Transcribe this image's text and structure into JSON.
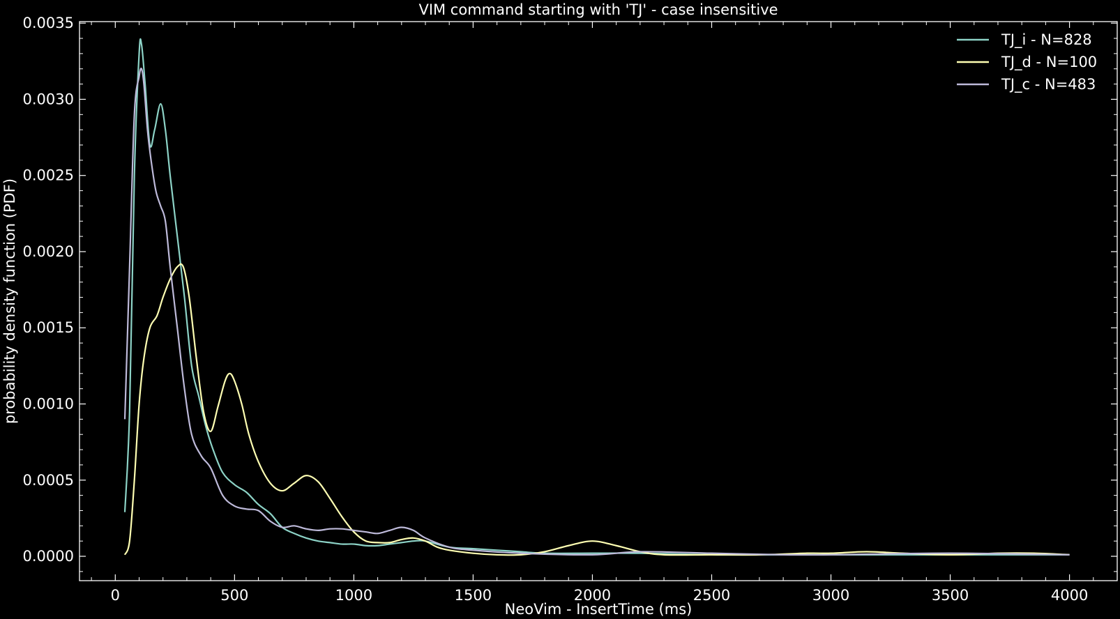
{
  "chart_data": {
    "type": "line",
    "title": "VIM command starting with 'TJ' - case insensitive",
    "xlabel": "NeoVim - InsertTime (ms)",
    "ylabel": "probability density function (PDF)",
    "xlim": [
      -150,
      4200
    ],
    "ylim": [
      -0.00016,
      0.00351
    ],
    "xticks": [
      0,
      500,
      1000,
      1500,
      2000,
      2500,
      3000,
      3500,
      4000
    ],
    "xtick_labels": [
      "0",
      "500",
      "1000",
      "1500",
      "2000",
      "2500",
      "3000",
      "3500",
      "4000"
    ],
    "yticks": [
      0,
      0.0005,
      0.001,
      0.0015,
      0.002,
      0.0025,
      0.003,
      0.0035
    ],
    "ytick_labels": [
      "0.0000",
      "0.0005",
      "0.0010",
      "0.0015",
      "0.0020",
      "0.0025",
      "0.0030",
      "0.0035"
    ],
    "grid": false,
    "legend_position": "top-right",
    "background": "#000000",
    "series": [
      {
        "name": "TJ_i - N=828",
        "color": "#8dd3c7",
        "x": [
          40,
          60,
          80,
          100,
          110,
          125,
          145,
          165,
          190,
          210,
          230,
          260,
          290,
          320,
          350,
          380,
          410,
          450,
          500,
          550,
          600,
          650,
          700,
          750,
          800,
          850,
          900,
          950,
          1000,
          1050,
          1100,
          1150,
          1200,
          1250,
          1300,
          1400,
          1500,
          1600,
          1700,
          1800,
          2000,
          2200,
          2500,
          2800,
          3000,
          3500,
          4000
        ],
        "y": [
          0.00029,
          0.00095,
          0.0025,
          0.0033,
          0.00336,
          0.0031,
          0.0027,
          0.0028,
          0.00297,
          0.0028,
          0.0025,
          0.0021,
          0.0017,
          0.00125,
          0.00105,
          0.00085,
          0.0007,
          0.00055,
          0.00047,
          0.00042,
          0.00034,
          0.00028,
          0.00019,
          0.00015,
          0.00012,
          0.0001,
          9e-05,
          8e-05,
          8e-05,
          7e-05,
          7e-05,
          8e-05,
          9e-05,
          0.0001,
          0.0001,
          6e-05,
          5e-05,
          4e-05,
          3e-05,
          2e-05,
          2e-05,
          2e-05,
          1e-05,
          1e-05,
          1e-05,
          1e-05,
          1e-05
        ]
      },
      {
        "name": "TJ_d - N=100",
        "color": "#ffffb3",
        "x": [
          40,
          60,
          80,
          100,
          120,
          145,
          175,
          200,
          230,
          260,
          285,
          310,
          340,
          370,
          400,
          430,
          460,
          480,
          500,
          530,
          560,
          600,
          650,
          700,
          750,
          800,
          850,
          900,
          950,
          1000,
          1050,
          1100,
          1150,
          1200,
          1250,
          1300,
          1350,
          1400,
          1500,
          1600,
          1700,
          1800,
          1900,
          2000,
          2100,
          2200,
          2300,
          2500,
          2700,
          2900,
          3000,
          3150,
          3300,
          3500,
          3700,
          3850,
          4000
        ],
        "y": [
          1e-05,
          0.0001,
          0.0005,
          0.001,
          0.0013,
          0.0015,
          0.00158,
          0.0017,
          0.00182,
          0.0019,
          0.0019,
          0.0017,
          0.0013,
          0.00095,
          0.00082,
          0.00098,
          0.00115,
          0.0012,
          0.00115,
          0.001,
          0.0008,
          0.00062,
          0.00048,
          0.00043,
          0.00048,
          0.00053,
          0.00049,
          0.00038,
          0.00026,
          0.00016,
          0.0001,
          9e-05,
          9e-05,
          0.00011,
          0.00012,
          0.0001,
          6e-05,
          4e-05,
          2e-05,
          1e-05,
          1e-05,
          3e-05,
          7e-05,
          0.0001,
          7e-05,
          3e-05,
          1e-05,
          1e-05,
          1e-05,
          2e-05,
          2e-05,
          3e-05,
          2e-05,
          1e-05,
          2e-05,
          2e-05,
          1e-05
        ]
      },
      {
        "name": "TJ_c - N=483",
        "color": "#bebada",
        "x": [
          40,
          60,
          80,
          100,
          110,
          120,
          135,
          150,
          170,
          190,
          210,
          230,
          260,
          290,
          320,
          360,
          400,
          450,
          500,
          550,
          600,
          650,
          700,
          750,
          800,
          850,
          900,
          950,
          1000,
          1050,
          1100,
          1150,
          1200,
          1250,
          1300,
          1400,
          1500,
          1700,
          2000,
          2200,
          2500,
          2800,
          3000,
          3500,
          4000
        ],
        "y": [
          0.0009,
          0.0019,
          0.0029,
          0.00315,
          0.0032,
          0.0031,
          0.0028,
          0.0026,
          0.0024,
          0.0023,
          0.0022,
          0.0019,
          0.0015,
          0.0011,
          0.0008,
          0.00066,
          0.00058,
          0.0004,
          0.00033,
          0.00031,
          0.0003,
          0.00023,
          0.00019,
          0.0002,
          0.00018,
          0.00017,
          0.00018,
          0.00018,
          0.00017,
          0.00016,
          0.00015,
          0.00017,
          0.00019,
          0.00017,
          0.00012,
          6e-05,
          4e-05,
          2e-05,
          1e-05,
          3e-05,
          2e-05,
          1e-05,
          1e-05,
          2e-05,
          1e-05
        ]
      }
    ]
  }
}
